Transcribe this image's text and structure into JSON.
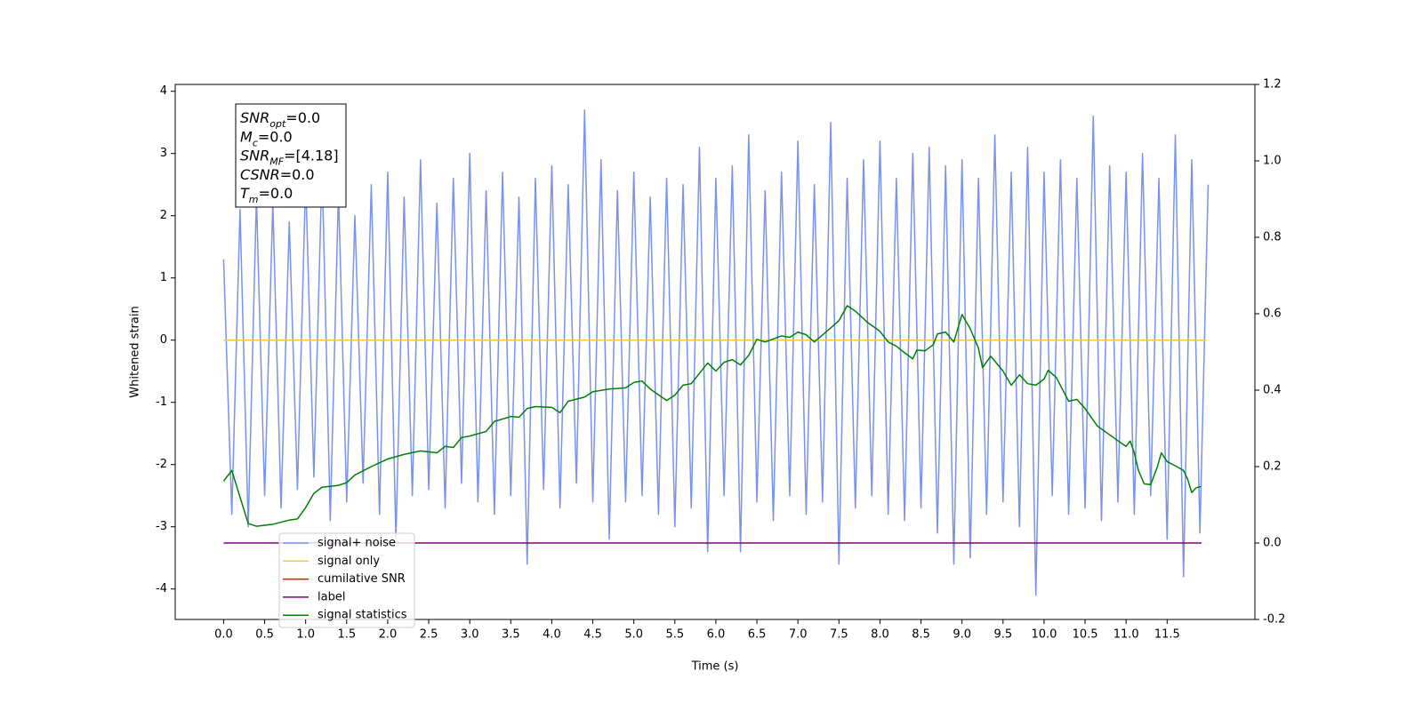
{
  "chart_data": {
    "type": "line",
    "xlabel": "Time (s)",
    "ylabel": "Whitened strain",
    "xlim": [
      -0.59,
      12.57
    ],
    "ylim": [
      -4.49,
      4.11
    ],
    "y2lim": [
      -0.2,
      1.2
    ],
    "xticks": [
      {
        "value": 0,
        "label": "0.0"
      },
      0.5,
      {
        "value": 1,
        "label": "1.0"
      },
      1.5,
      {
        "value": 2,
        "label": "2.0"
      },
      2.5,
      {
        "value": 3,
        "label": "3.0"
      },
      3.5,
      {
        "value": 4,
        "label": "4.0"
      },
      4.5,
      {
        "value": 5,
        "label": "5.0"
      },
      5.5,
      {
        "value": 6,
        "label": "6.0"
      },
      6.5,
      {
        "value": 7,
        "label": "7.0"
      },
      7.5,
      {
        "value": 8,
        "label": "8.0"
      },
      8.5,
      {
        "value": 9,
        "label": "9.0"
      },
      9.5,
      {
        "value": 10,
        "label": "10.0"
      },
      10.5,
      {
        "value": 11,
        "label": "11.0"
      },
      11.5
    ],
    "yticks": [
      -4,
      -3,
      -2,
      -1,
      0,
      1,
      2,
      3,
      4
    ],
    "y2ticks": [
      -0.2,
      {
        "value": 0,
        "label": "0.0"
      },
      0.2,
      0.4,
      0.6,
      0.8,
      {
        "value": 1,
        "label": "1.0"
      },
      1.2
    ],
    "legend_position": "lower left",
    "annotations": [
      {
        "text": "SNR",
        "sub": "opt",
        "value": "=0.0"
      },
      {
        "text": "M",
        "sub": "c",
        "value": "=0.0"
      },
      {
        "text": "SNR",
        "sub": "MF",
        "value": "=[4.18]"
      },
      {
        "text": "CSNR",
        "sub": null,
        "value": "=0.0"
      },
      {
        "text": "T",
        "sub": "m",
        "value": "=0.0"
      }
    ],
    "series": [
      {
        "name": "signal+ noise",
        "color": "#7893e8",
        "axis": "y",
        "x": [
          0.0,
          0.1,
          0.2,
          0.3,
          0.4,
          0.5,
          0.6,
          0.7,
          0.8,
          0.9,
          1.0,
          1.1,
          1.2,
          1.3,
          1.4,
          1.5,
          1.6,
          1.7,
          1.8,
          1.9,
          2.0,
          2.1,
          2.2,
          2.3,
          2.4,
          2.5,
          2.6,
          2.7,
          2.8,
          2.9,
          3.0,
          3.1,
          3.2,
          3.3,
          3.4,
          3.5,
          3.6,
          3.7,
          3.8,
          3.9,
          4.0,
          4.1,
          4.2,
          4.3,
          4.4,
          4.5,
          4.6,
          4.7,
          4.8,
          4.9,
          5.0,
          5.1,
          5.2,
          5.3,
          5.4,
          5.5,
          5.6,
          5.7,
          5.8,
          5.9,
          6.0,
          6.1,
          6.2,
          6.3,
          6.4,
          6.5,
          6.6,
          6.7,
          6.8,
          6.9,
          7.0,
          7.1,
          7.2,
          7.3,
          7.4,
          7.5,
          7.6,
          7.7,
          7.8,
          7.9,
          8.0,
          8.1,
          8.2,
          8.3,
          8.4,
          8.5,
          8.6,
          8.7,
          8.8,
          8.9,
          9.0,
          9.1,
          9.2,
          9.3,
          9.4,
          9.5,
          9.6,
          9.7,
          9.8,
          9.9,
          10.0,
          10.1,
          10.2,
          10.3,
          10.4,
          10.5,
          10.6,
          10.7,
          10.8,
          10.9,
          11.0,
          11.1,
          11.2,
          11.3,
          11.4,
          11.5,
          11.6,
          11.7,
          11.8,
          11.9,
          12.0
        ],
        "values": [
          1.3,
          -2.8,
          2.1,
          -3.0,
          2.3,
          -2.5,
          2.2,
          -2.7,
          1.9,
          -2.4,
          2.6,
          -2.2,
          2.8,
          -2.9,
          2.4,
          -2.6,
          2.0,
          -2.3,
          2.5,
          -2.8,
          2.7,
          -3.2,
          2.3,
          -2.5,
          2.9,
          -2.4,
          2.2,
          -2.7,
          2.6,
          -2.3,
          3.0,
          -2.6,
          2.4,
          -2.8,
          2.7,
          -2.5,
          2.3,
          -3.6,
          2.6,
          -2.4,
          2.8,
          -2.7,
          2.5,
          -2.3,
          3.7,
          -2.6,
          2.9,
          -3.2,
          2.4,
          -2.6,
          2.7,
          -2.5,
          2.3,
          -2.8,
          2.6,
          -3.0,
          2.5,
          -2.7,
          3.1,
          -3.4,
          2.6,
          -2.5,
          2.8,
          -3.4,
          3.3,
          -2.6,
          2.4,
          -2.9,
          2.7,
          -2.5,
          3.2,
          -2.8,
          2.5,
          -2.6,
          3.5,
          -3.6,
          2.6,
          -2.7,
          2.9,
          -2.5,
          3.2,
          -2.8,
          2.6,
          -2.9,
          3.0,
          -2.7,
          3.1,
          -3.1,
          2.8,
          -3.6,
          2.9,
          -3.5,
          2.6,
          -2.8,
          3.3,
          -2.6,
          2.7,
          -3.0,
          3.1,
          -4.1,
          2.7,
          -2.5,
          2.9,
          -2.8,
          2.6,
          -2.7,
          3.6,
          -2.9,
          2.8,
          -2.6,
          2.7,
          -2.8,
          3.0,
          -2.5,
          2.6,
          -3.2,
          3.3,
          -3.8,
          2.9,
          -3.1,
          2.5
        ]
      },
      {
        "name": "signal only",
        "color": "#ffc04d",
        "axis": "y",
        "x": [
          0,
          11.98
        ],
        "values": [
          0,
          0
        ]
      },
      {
        "name": "cumilative SNR",
        "color": "#ff0000",
        "axis": "y2",
        "x": [],
        "values": []
      },
      {
        "name": "label",
        "color": "#800080",
        "axis": "y2",
        "x": [
          0,
          11.92
        ],
        "values": [
          0,
          0
        ]
      },
      {
        "name": "signal statistics",
        "color": "#008000",
        "axis": "y2",
        "x": [
          0,
          0.1,
          0.2,
          0.3,
          0.4,
          0.6,
          0.8,
          0.9,
          1.0,
          1.1,
          1.2,
          1.4,
          1.5,
          1.6,
          1.8,
          2.0,
          2.2,
          2.4,
          2.6,
          2.7,
          2.8,
          2.9,
          3.0,
          3.2,
          3.3,
          3.5,
          3.6,
          3.7,
          3.8,
          4.0,
          4.1,
          4.2,
          4.4,
          4.5,
          4.7,
          4.9,
          5.0,
          5.1,
          5.2,
          5.4,
          5.5,
          5.6,
          5.7,
          5.9,
          6.0,
          6.1,
          6.2,
          6.3,
          6.4,
          6.5,
          6.6,
          6.8,
          6.9,
          7.0,
          7.1,
          7.2,
          7.4,
          7.5,
          7.6,
          7.7,
          7.85,
          8.0,
          8.1,
          8.2,
          8.3,
          8.4,
          8.45,
          8.55,
          8.65,
          8.7,
          8.8,
          8.9,
          9.0,
          9.1,
          9.2,
          9.25,
          9.35,
          9.5,
          9.6,
          9.7,
          9.8,
          9.9,
          10.0,
          10.05,
          10.15,
          10.3,
          10.4,
          10.5,
          10.65,
          10.8,
          10.95,
          11.0,
          11.05,
          11.1,
          11.15,
          11.22,
          11.3,
          11.38,
          11.43,
          11.5,
          11.6,
          11.7,
          11.75,
          11.8,
          11.85,
          11.91
        ],
        "values": [
          0.162,
          0.19,
          0.12,
          0.051,
          0.044,
          0.049,
          0.06,
          0.063,
          0.093,
          0.13,
          0.146,
          0.151,
          0.158,
          0.178,
          0.2,
          0.22,
          0.232,
          0.241,
          0.236,
          0.253,
          0.25,
          0.276,
          0.28,
          0.292,
          0.318,
          0.331,
          0.329,
          0.352,
          0.357,
          0.355,
          0.341,
          0.371,
          0.382,
          0.396,
          0.403,
          0.406,
          0.42,
          0.424,
          0.403,
          0.373,
          0.387,
          0.413,
          0.417,
          0.471,
          0.45,
          0.473,
          0.48,
          0.466,
          0.491,
          0.533,
          0.526,
          0.542,
          0.538,
          0.552,
          0.545,
          0.526,
          0.563,
          0.582,
          0.621,
          0.607,
          0.577,
          0.554,
          0.526,
          0.515,
          0.498,
          0.482,
          0.505,
          0.503,
          0.519,
          0.547,
          0.552,
          0.526,
          0.598,
          0.561,
          0.51,
          0.459,
          0.489,
          0.45,
          0.413,
          0.44,
          0.417,
          0.413,
          0.429,
          0.452,
          0.433,
          0.371,
          0.376,
          0.352,
          0.306,
          0.283,
          0.26,
          0.253,
          0.267,
          0.236,
          0.19,
          0.155,
          0.153,
          0.199,
          0.236,
          0.213,
          0.202,
          0.19,
          0.167,
          0.132,
          0.144,
          0.148
        ]
      }
    ]
  }
}
